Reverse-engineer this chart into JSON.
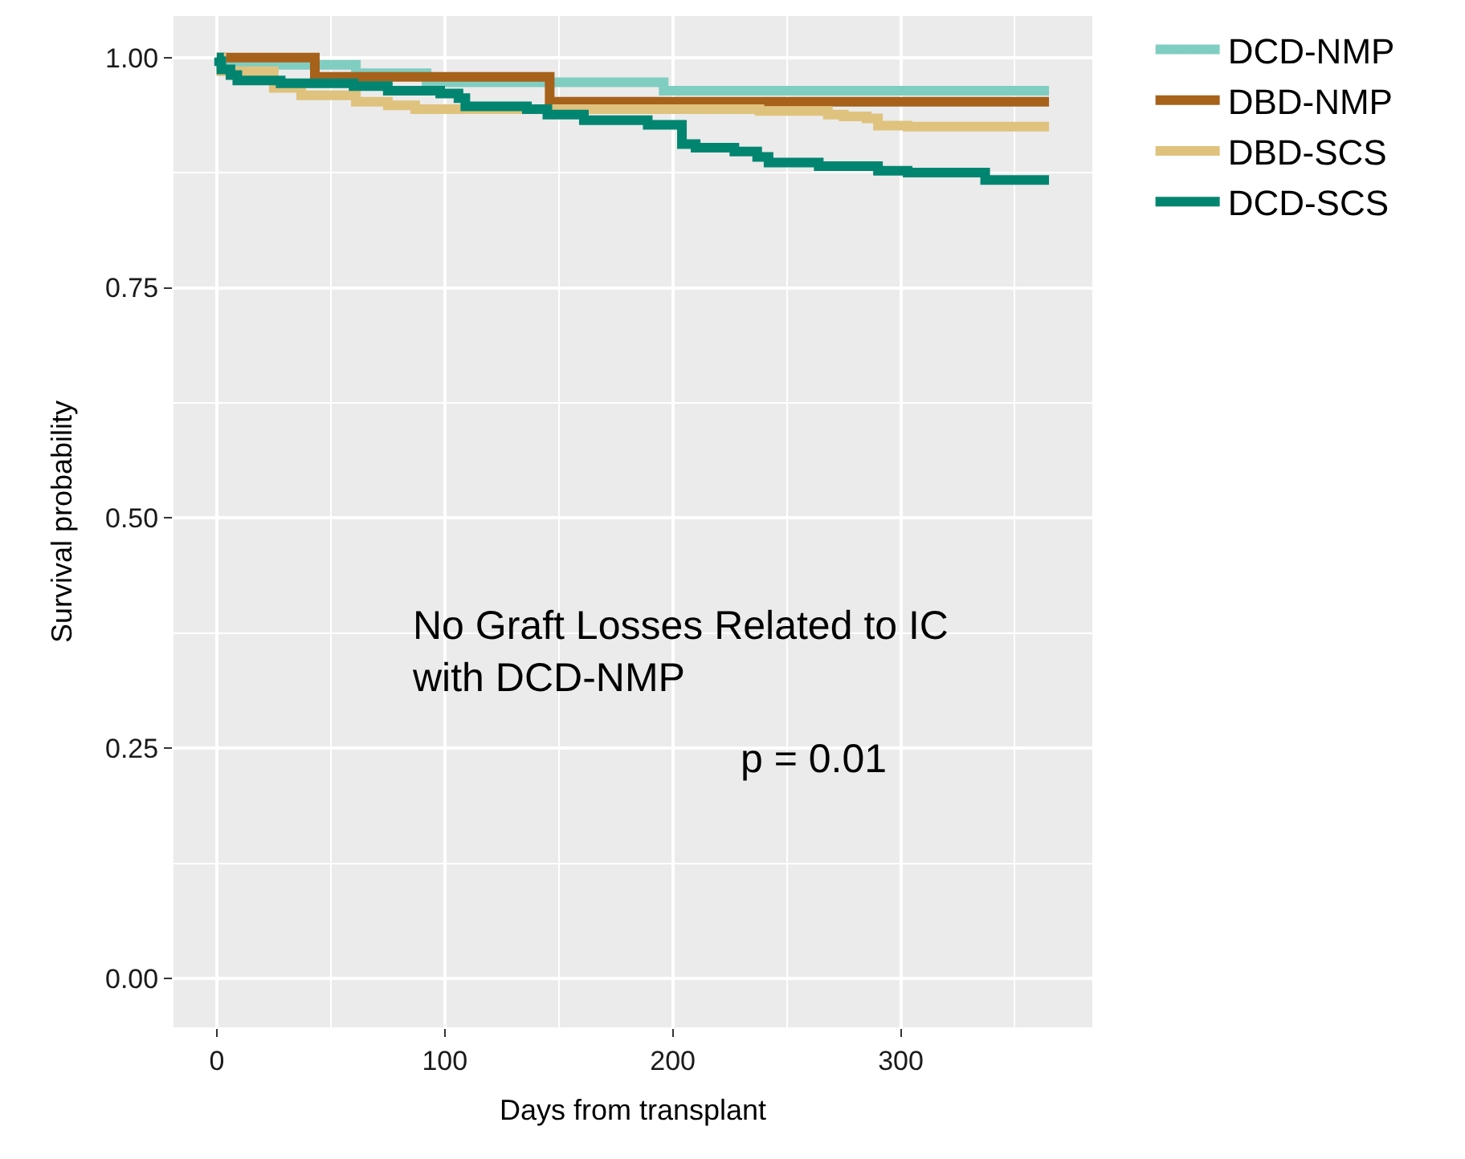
{
  "chart_data": {
    "type": "step",
    "xlabel": "Days from transplant",
    "ylabel": "Survival probability",
    "xlim": [
      -19,
      384
    ],
    "xticks": [
      0,
      100,
      200,
      300
    ],
    "ylim": [
      -0.053,
      1.045
    ],
    "yticks": [
      {
        "value": 0,
        "label": "0.00"
      },
      {
        "value": 0.25,
        "label": "0.25"
      },
      {
        "value": 0.5,
        "label": "0.50"
      },
      {
        "value": 0.75,
        "label": "0.75"
      },
      {
        "value": 1,
        "label": "1.00"
      }
    ],
    "grid": true,
    "legend": "right",
    "annotations": [
      "No Graft Losses Related to IC\nwith DCD-NMP",
      "p = 0.01"
    ],
    "series": [
      {
        "name": "DCD-NMP",
        "color": "#80cdc1",
        "x": [
          0,
          2,
          61,
          92,
          196,
          365
        ],
        "values": [
          1.0,
          0.992,
          0.983,
          0.973,
          0.964,
          0.964
        ]
      },
      {
        "name": "DBD-NMP",
        "color": "#a6611a",
        "x": [
          0,
          43,
          146,
          365
        ],
        "values": [
          1.0,
          0.979,
          0.952,
          0.952
        ]
      },
      {
        "name": "DBD-SCS",
        "color": "#dfc27d",
        "x": [
          0,
          2,
          25,
          37,
          61,
          75,
          87,
          238,
          268,
          275,
          285,
          290,
          303,
          365
        ],
        "values": [
          1.0,
          0.985,
          0.967,
          0.959,
          0.952,
          0.948,
          0.944,
          0.942,
          0.938,
          0.936,
          0.934,
          0.926,
          0.925,
          0.925
        ]
      },
      {
        "name": "DCD-SCS",
        "color": "#018571",
        "x": [
          0,
          1,
          2,
          6,
          9,
          28,
          60,
          75,
          98,
          106,
          109,
          136,
          145,
          161,
          189,
          204,
          210,
          227,
          237,
          242,
          264,
          290,
          303,
          337,
          365
        ],
        "values": [
          1.0,
          0.996,
          0.987,
          0.981,
          0.975,
          0.972,
          0.969,
          0.964,
          0.961,
          0.956,
          0.947,
          0.944,
          0.938,
          0.932,
          0.927,
          0.906,
          0.902,
          0.898,
          0.892,
          0.886,
          0.882,
          0.877,
          0.875,
          0.867,
          0.867
        ]
      }
    ]
  }
}
